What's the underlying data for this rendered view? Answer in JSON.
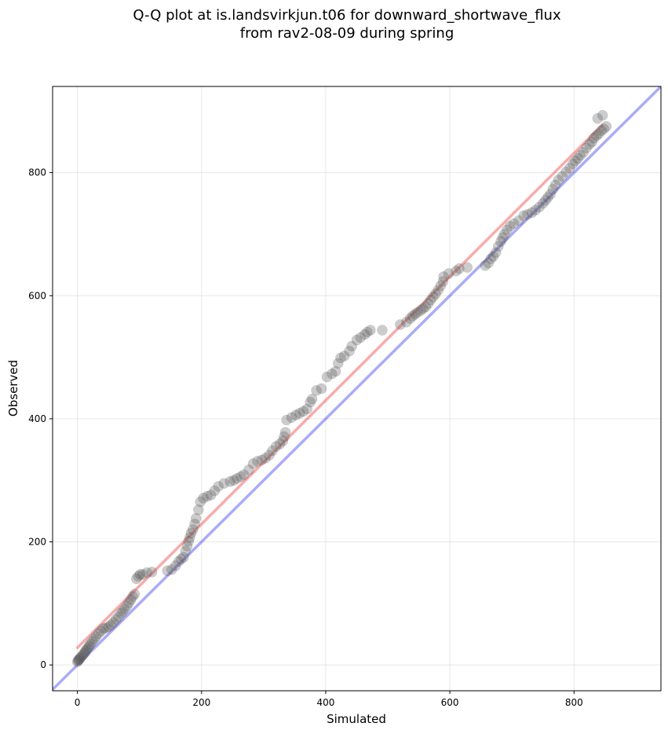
{
  "chart_data": {
    "type": "scatter",
    "title_line1": "Q-Q plot at is.landsvirkjun.t06 for downward_shortwave_flux",
    "title_line2": "from rav2-08-09 during spring",
    "xlabel": "Simulated",
    "ylabel": "Observed",
    "xlim": [
      -40,
      940
    ],
    "ylim": [
      -42,
      940
    ],
    "xticks": [
      0,
      200,
      400,
      600,
      800
    ],
    "yticks": [
      0,
      200,
      400,
      600,
      800
    ],
    "grid": true,
    "point_color": "#555555",
    "identity_line_color": "#0000ee",
    "fit_line_color": "#ee0000",
    "fit_line": {
      "x": [
        0,
        845
      ],
      "y": [
        28,
        877
      ]
    },
    "identity_line": {
      "x": [
        -40,
        940
      ],
      "y": [
        -40,
        940
      ]
    },
    "points": [
      [
        0,
        5
      ],
      [
        1,
        7
      ],
      [
        2,
        8
      ],
      [
        3,
        9
      ],
      [
        4,
        11
      ],
      [
        6,
        13
      ],
      [
        8,
        15
      ],
      [
        10,
        18
      ],
      [
        12,
        20
      ],
      [
        13,
        23
      ],
      [
        15,
        25
      ],
      [
        17,
        28
      ],
      [
        19,
        31
      ],
      [
        21,
        34
      ],
      [
        24,
        38
      ],
      [
        27,
        42
      ],
      [
        30,
        46
      ],
      [
        34,
        51
      ],
      [
        38,
        55
      ],
      [
        42,
        59
      ],
      [
        46,
        60
      ],
      [
        50,
        62
      ],
      [
        54,
        65
      ],
      [
        58,
        69
      ],
      [
        62,
        74
      ],
      [
        66,
        78
      ],
      [
        70,
        84
      ],
      [
        73,
        87
      ],
      [
        76,
        91
      ],
      [
        80,
        96
      ],
      [
        83,
        101
      ],
      [
        86,
        106
      ],
      [
        89,
        111
      ],
      [
        92,
        115
      ],
      [
        95,
        140
      ],
      [
        98,
        144
      ],
      [
        101,
        147
      ],
      [
        105,
        147
      ],
      [
        112,
        150
      ],
      [
        120,
        151
      ],
      [
        145,
        153
      ],
      [
        152,
        155
      ],
      [
        158,
        161
      ],
      [
        163,
        168
      ],
      [
        167,
        172
      ],
      [
        171,
        175
      ],
      [
        174,
        185
      ],
      [
        177,
        193
      ],
      [
        179,
        201
      ],
      [
        181,
        207
      ],
      [
        183,
        214
      ],
      [
        186,
        220
      ],
      [
        189,
        229
      ],
      [
        191,
        238
      ],
      [
        195,
        252
      ],
      [
        198,
        265
      ],
      [
        203,
        271
      ],
      [
        209,
        274
      ],
      [
        215,
        276
      ],
      [
        221,
        283
      ],
      [
        227,
        290
      ],
      [
        236,
        295
      ],
      [
        246,
        298
      ],
      [
        252,
        300
      ],
      [
        257,
        303
      ],
      [
        263,
        306
      ],
      [
        268,
        309
      ],
      [
        276,
        317
      ],
      [
        283,
        327
      ],
      [
        290,
        331
      ],
      [
        297,
        333
      ],
      [
        303,
        336
      ],
      [
        309,
        341
      ],
      [
        314,
        348
      ],
      [
        320,
        355
      ],
      [
        326,
        359
      ],
      [
        331,
        364
      ],
      [
        333,
        371
      ],
      [
        335,
        378
      ],
      [
        337,
        398
      ],
      [
        345,
        402
      ],
      [
        352,
        406
      ],
      [
        358,
        409
      ],
      [
        364,
        412
      ],
      [
        370,
        416
      ],
      [
        375,
        427
      ],
      [
        378,
        432
      ],
      [
        385,
        446
      ],
      [
        393,
        449
      ],
      [
        402,
        468
      ],
      [
        410,
        473
      ],
      [
        416,
        477
      ],
      [
        420,
        490
      ],
      [
        424,
        499
      ],
      [
        430,
        502
      ],
      [
        438,
        510
      ],
      [
        442,
        518
      ],
      [
        450,
        528
      ],
      [
        456,
        532
      ],
      [
        463,
        537
      ],
      [
        467,
        541
      ],
      [
        472,
        544
      ],
      [
        491,
        544
      ],
      [
        520,
        553
      ],
      [
        530,
        557
      ],
      [
        536,
        563
      ],
      [
        540,
        567
      ],
      [
        544,
        570
      ],
      [
        548,
        573
      ],
      [
        553,
        576
      ],
      [
        557,
        579
      ],
      [
        561,
        582
      ],
      [
        565,
        587
      ],
      [
        569,
        593
      ],
      [
        573,
        598
      ],
      [
        577,
        603
      ],
      [
        581,
        609
      ],
      [
        585,
        616
      ],
      [
        589,
        623
      ],
      [
        590,
        631
      ],
      [
        598,
        636
      ],
      [
        610,
        640
      ],
      [
        615,
        644
      ],
      [
        628,
        646
      ],
      [
        657,
        649
      ],
      [
        662,
        653
      ],
      [
        666,
        660
      ],
      [
        670,
        664
      ],
      [
        674,
        670
      ],
      [
        678,
        680
      ],
      [
        682,
        688
      ],
      [
        685,
        694
      ],
      [
        688,
        700
      ],
      [
        692,
        707
      ],
      [
        697,
        713
      ],
      [
        703,
        717
      ],
      [
        711,
        722
      ],
      [
        719,
        730
      ],
      [
        725,
        732
      ],
      [
        732,
        735
      ],
      [
        738,
        739
      ],
      [
        744,
        744
      ],
      [
        750,
        750
      ],
      [
        754,
        755
      ],
      [
        758,
        760
      ],
      [
        762,
        765
      ],
      [
        766,
        773
      ],
      [
        770,
        780
      ],
      [
        775,
        788
      ],
      [
        781,
        794
      ],
      [
        787,
        801
      ],
      [
        793,
        807
      ],
      [
        798,
        814
      ],
      [
        802,
        819
      ],
      [
        806,
        823
      ],
      [
        810,
        828
      ],
      [
        815,
        833
      ],
      [
        820,
        840
      ],
      [
        825,
        846
      ],
      [
        829,
        850
      ],
      [
        832,
        856
      ],
      [
        836,
        860
      ],
      [
        840,
        863
      ],
      [
        844,
        868
      ],
      [
        848,
        871
      ],
      [
        852,
        875
      ],
      [
        838,
        888
      ],
      [
        846,
        893
      ]
    ]
  }
}
